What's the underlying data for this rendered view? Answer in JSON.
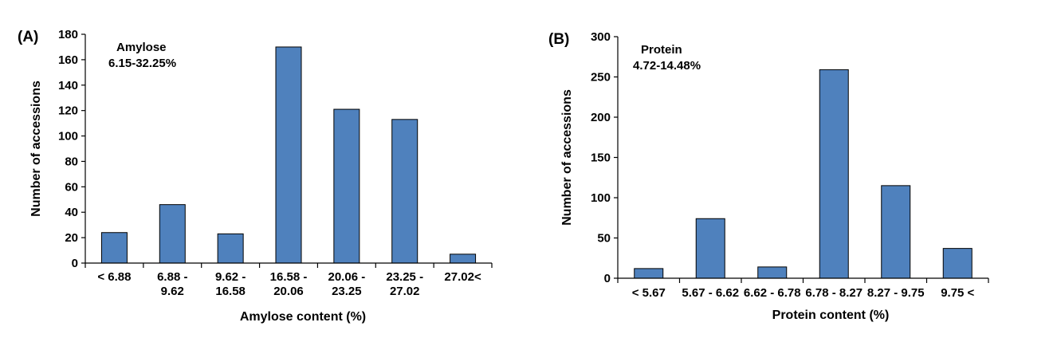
{
  "chart_data": [
    {
      "type": "bar",
      "panel_label": "(A)",
      "annotation_title": "Amylose",
      "annotation_range": "6.15-32.25%",
      "categories": [
        [
          "< 6.88"
        ],
        [
          "6.88 -",
          "9.62"
        ],
        [
          "9.62 -",
          "16.58"
        ],
        [
          "16.58 -",
          "20.06"
        ],
        [
          "20.06 -",
          "23.25"
        ],
        [
          "23.25 -",
          "27.02"
        ],
        [
          "27.02<"
        ]
      ],
      "values": [
        24,
        46,
        23,
        170,
        121,
        113,
        7
      ],
      "xlabel": "Amylose content (%)",
      "ylabel": "Number of accessions",
      "ylim": [
        0,
        180
      ],
      "yticks": [
        "0",
        "20",
        "40",
        "60",
        "80",
        "100",
        "120",
        "140",
        "160",
        "180"
      ],
      "grid": false,
      "bar_color": "#4f81bd"
    },
    {
      "type": "bar",
      "panel_label": "(B)",
      "annotation_title": "Protein",
      "annotation_range": "4.72-14.48%",
      "categories": [
        [
          "< 5.67"
        ],
        [
          "5.67 -  6.62"
        ],
        [
          "6.62 - 6.78"
        ],
        [
          "6.78 - 8.27"
        ],
        [
          "8.27 - 9.75"
        ],
        [
          "9.75 <"
        ]
      ],
      "values": [
        12,
        74,
        14,
        259,
        115,
        37
      ],
      "xlabel": "Protein content (%)",
      "ylabel": "Number of accessions",
      "ylim": [
        0,
        300
      ],
      "yticks": [
        "0",
        "50",
        "100",
        "150",
        "200",
        "250",
        "300"
      ],
      "grid": false,
      "bar_color": "#4f81bd"
    }
  ]
}
